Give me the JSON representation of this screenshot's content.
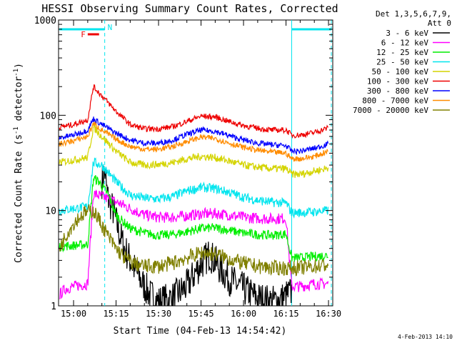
{
  "chart_data": {
    "type": "line",
    "title": "HESSI Observing Summary Count Rates, Corrected",
    "xlabel": "Start Time (04-Feb-13 14:54:42)",
    "ylabel_main": "Corrected Count Rate (s",
    "ylabel_sup1": "-1",
    "ylabel_mid": " detector",
    "ylabel_sup2": "-1",
    "ylabel_end": ")",
    "y_scale": "log",
    "ylim": [
      1,
      1000
    ],
    "xlim": [
      "14:54:42",
      "16:31:30"
    ],
    "x_ticks": [
      "15:00",
      "15:15",
      "15:30",
      "15:45",
      "16:00",
      "16:15",
      "16:30"
    ],
    "y_ticks": [
      "1",
      "10",
      "100",
      "1000"
    ],
    "legend": {
      "placement": "right",
      "header_line1": "Det 1,3,5,6,7,9,",
      "header_line2": "Att 0",
      "entries": [
        {
          "label": "3 - 6 keV",
          "color": "#000000"
        },
        {
          "label": "6 - 12 keV",
          "color": "#ff00ff"
        },
        {
          "label": "12 - 25 keV",
          "color": "#00ee00"
        },
        {
          "label": "25 - 50 keV",
          "color": "#00e5ee"
        },
        {
          "label": "50 - 100 keV",
          "color": "#d4d400"
        },
        {
          "label": "100 - 300 keV",
          "color": "#ee0000"
        },
        {
          "label": "300 - 800 keV",
          "color": "#0000ff"
        },
        {
          "label": "800 - 7000 keV",
          "color": "#ff8c00"
        },
        {
          "label": "7000 - 20000 keV",
          "color": "#808000"
        }
      ]
    },
    "markers": {
      "flare_label": "F",
      "night_label": "N",
      "flare_color": "#ee0000",
      "night_color": "#00e5ee",
      "flare_span": [
        "15:05",
        "15:09"
      ],
      "night_span": [
        "14:55",
        "15:11"
      ],
      "night_span_2": [
        "16:17",
        "16:31"
      ],
      "dashed_lines": [
        "15:11",
        "16:31"
      ],
      "solid_line": "16:17"
    },
    "series": [
      {
        "name": "3 - 6 keV",
        "color": "#000000",
        "x": [
          "15:10",
          "15:11",
          "15:12",
          "15:14",
          "15:16",
          "15:18",
          "15:21",
          "15:24",
          "15:27",
          "15:30",
          "15:35",
          "15:40",
          "15:44",
          "15:48",
          "15:52",
          "15:56",
          "16:00",
          "16:05",
          "16:10",
          "16:14",
          "16:17"
        ],
        "y": [
          20,
          26,
          14,
          10,
          6,
          4,
          2.6,
          1.8,
          1.3,
          1.1,
          1.2,
          1.6,
          2.5,
          3.5,
          2.4,
          1.8,
          1.5,
          1.2,
          1.1,
          1.2,
          1.4
        ]
      },
      {
        "name": "6 - 12 keV",
        "color": "#ff00ff",
        "x": [
          "14:55",
          "14:57",
          "15:00",
          "15:05",
          "15:07",
          "15:10",
          "15:13",
          "15:16",
          "15:20",
          "15:25",
          "15:30",
          "15:35",
          "15:40",
          "15:45",
          "15:50",
          "15:55",
          "16:00",
          "16:05",
          "16:10",
          "16:15",
          "16:17",
          "16:20",
          "16:25",
          "16:30"
        ],
        "y": [
          1.3,
          1.5,
          1.6,
          1.7,
          15,
          14,
          13,
          12,
          10.5,
          9,
          8.5,
          8.5,
          8.8,
          9.2,
          9.3,
          9,
          8.5,
          8.3,
          8.2,
          8.3,
          1.6,
          1.6,
          1.7,
          1.7
        ]
      },
      {
        "name": "12 - 25 keV",
        "color": "#00ee00",
        "x": [
          "14:55",
          "15:00",
          "15:05",
          "15:07",
          "15:09",
          "15:12",
          "15:15",
          "15:20",
          "15:25",
          "15:30",
          "15:35",
          "15:40",
          "15:45",
          "15:50",
          "15:55",
          "16:00",
          "16:05",
          "16:10",
          "16:15",
          "16:17",
          "16:20",
          "16:25",
          "16:30"
        ],
        "y": [
          4.2,
          4.3,
          4.4,
          22,
          20,
          15,
          9,
          6.5,
          5.8,
          5.5,
          5.6,
          6.0,
          6.5,
          6.6,
          6.2,
          5.8,
          5.6,
          5.5,
          5.7,
          3.2,
          3.2,
          3.3,
          3.4
        ]
      },
      {
        "name": "25 - 50 keV",
        "color": "#00e5ee",
        "x": [
          "14:55",
          "15:00",
          "15:05",
          "15:07",
          "15:10",
          "15:15",
          "15:20",
          "15:25",
          "15:30",
          "15:35",
          "15:40",
          "15:45",
          "15:50",
          "15:55",
          "16:00",
          "16:05",
          "16:10",
          "16:15",
          "16:17",
          "16:20",
          "16:25",
          "16:30"
        ],
        "y": [
          10,
          10.5,
          11,
          32,
          30,
          20,
          14.5,
          13.5,
          13.2,
          14,
          16,
          17.5,
          17,
          15.5,
          13.8,
          12.8,
          12.2,
          12,
          9.5,
          9.5,
          9.7,
          10
        ]
      },
      {
        "name": "50 - 100 keV",
        "color": "#d4d400",
        "x": [
          "14:55",
          "15:00",
          "15:05",
          "15:07",
          "15:10",
          "15:15",
          "15:20",
          "15:25",
          "15:30",
          "15:35",
          "15:40",
          "15:45",
          "15:50",
          "15:55",
          "16:00",
          "16:05",
          "16:10",
          "16:15",
          "16:17",
          "16:20",
          "16:25",
          "16:30"
        ],
        "y": [
          32,
          34,
          36,
          75,
          60,
          42,
          32,
          30,
          30.5,
          32,
          35,
          37,
          36,
          33,
          30,
          28.5,
          27.5,
          27.5,
          24,
          24,
          26,
          28
        ]
      },
      {
        "name": "100 - 300 keV",
        "color": "#ee0000",
        "x": [
          "14:55",
          "15:00",
          "15:05",
          "15:07",
          "15:10",
          "15:15",
          "15:20",
          "15:25",
          "15:30",
          "15:35",
          "15:40",
          "15:45",
          "15:50",
          "15:55",
          "16:00",
          "16:05",
          "16:10",
          "16:15",
          "16:17",
          "16:20",
          "16:25",
          "16:30"
        ],
        "y": [
          75,
          80,
          90,
          200,
          160,
          110,
          80,
          72,
          72,
          76,
          86,
          98,
          96,
          86,
          78,
          73,
          70,
          70,
          62,
          62,
          66,
          74
        ]
      },
      {
        "name": "300 - 800 keV",
        "color": "#0000ff",
        "x": [
          "14:55",
          "15:00",
          "15:05",
          "15:07",
          "15:10",
          "15:15",
          "15:20",
          "15:25",
          "15:30",
          "15:35",
          "15:40",
          "15:45",
          "15:50",
          "15:55",
          "16:00",
          "16:05",
          "16:10",
          "16:15",
          "16:17",
          "16:20",
          "16:25",
          "16:30"
        ],
        "y": [
          58,
          62,
          70,
          92,
          80,
          65,
          55,
          51,
          51,
          55,
          63,
          70,
          68,
          61,
          55,
          51,
          49,
          48,
          42,
          42,
          45,
          50
        ]
      },
      {
        "name": "800 - 7000 keV",
        "color": "#ff8c00",
        "x": [
          "14:55",
          "15:00",
          "15:05",
          "15:07",
          "15:10",
          "15:15",
          "15:20",
          "15:25",
          "15:30",
          "15:35",
          "15:40",
          "15:45",
          "15:50",
          "15:55",
          "16:00",
          "16:05",
          "16:10",
          "16:15",
          "16:17",
          "16:20",
          "16:25",
          "16:30"
        ],
        "y": [
          50,
          54,
          60,
          82,
          70,
          56,
          47,
          44,
          44,
          47,
          53,
          59,
          57,
          51,
          46,
          43,
          41,
          40,
          35,
          35,
          37,
          42
        ]
      },
      {
        "name": "7000 - 20000 keV",
        "color": "#808000",
        "x": [
          "14:55",
          "14:58",
          "15:01",
          "15:04",
          "15:07",
          "15:09",
          "15:12",
          "15:15",
          "15:18",
          "15:21",
          "15:25",
          "15:30",
          "15:35",
          "15:40",
          "15:45",
          "15:50",
          "15:55",
          "16:00",
          "16:05",
          "16:10",
          "16:15",
          "16:17",
          "16:20",
          "16:25",
          "16:30"
        ],
        "y": [
          4,
          6,
          8,
          9.5,
          10,
          8,
          5.5,
          4,
          3.2,
          2.8,
          2.6,
          2.6,
          2.8,
          3.2,
          3.6,
          3.5,
          3.1,
          2.8,
          2.6,
          2.5,
          2.5,
          2.5,
          2.5,
          2.6,
          2.7
        ]
      }
    ]
  },
  "footer": {
    "timestamp": "4-Feb-2013 14:10"
  }
}
